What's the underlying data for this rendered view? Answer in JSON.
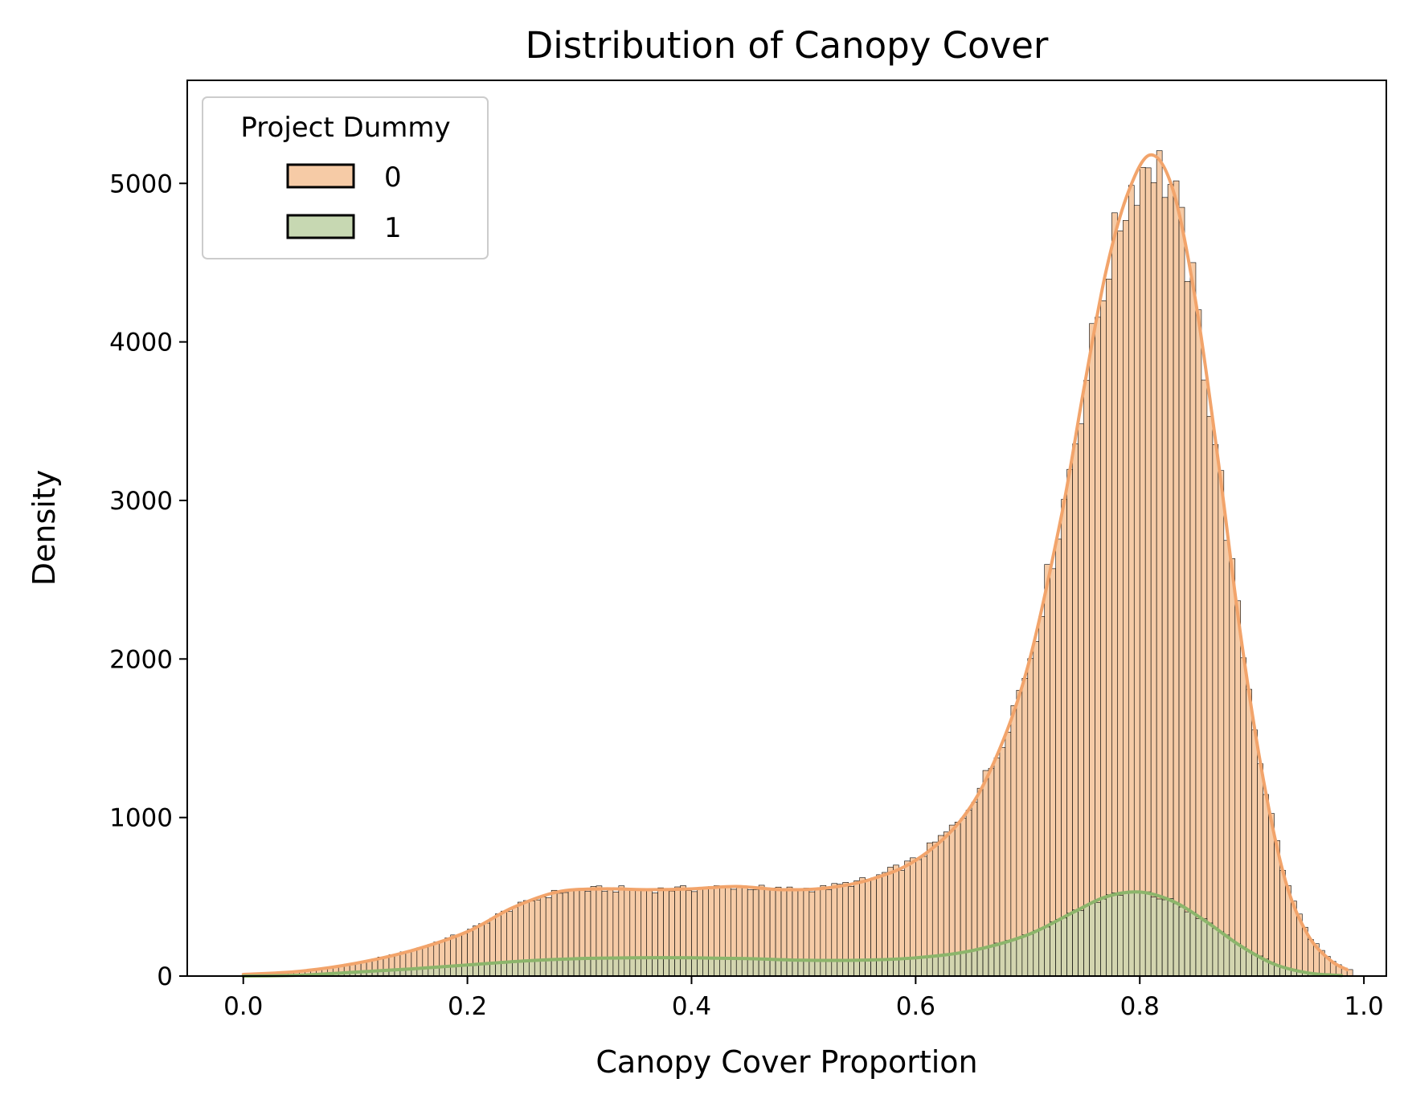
{
  "chart_data": {
    "type": "histogram",
    "title": "Distribution of Canopy Cover",
    "xlabel": "Canopy Cover Proportion",
    "ylabel": "Density",
    "xlim": [
      -0.05,
      1.02
    ],
    "ylim": [
      0,
      5650
    ],
    "xticks": [
      0.0,
      0.2,
      0.4,
      0.6,
      0.8,
      1.0
    ],
    "xtick_labels": [
      "0.0",
      "0.2",
      "0.4",
      "0.6",
      "0.8",
      "1.0"
    ],
    "yticks": [
      0,
      1000,
      2000,
      3000,
      4000,
      5000
    ],
    "ytick_labels": [
      "0",
      "1000",
      "2000",
      "3000",
      "4000",
      "5000"
    ],
    "grid": false,
    "legend": {
      "title": "Project Dummy",
      "placement": "top-left",
      "entries": [
        "0",
        "1"
      ]
    },
    "bin_width": 0.005,
    "series": [
      {
        "name": "0",
        "fill_color": "#f6cba6",
        "line_color": "#f2a46b",
        "kde_points": [
          [
            0.0,
            10
          ],
          [
            0.05,
            30
          ],
          [
            0.1,
            80
          ],
          [
            0.15,
            160
          ],
          [
            0.2,
            280
          ],
          [
            0.24,
            430
          ],
          [
            0.28,
            530
          ],
          [
            0.32,
            550
          ],
          [
            0.36,
            545
          ],
          [
            0.4,
            550
          ],
          [
            0.44,
            565
          ],
          [
            0.48,
            545
          ],
          [
            0.52,
            555
          ],
          [
            0.56,
            610
          ],
          [
            0.6,
            730
          ],
          [
            0.64,
            980
          ],
          [
            0.67,
            1350
          ],
          [
            0.7,
            1950
          ],
          [
            0.73,
            2900
          ],
          [
            0.75,
            3700
          ],
          [
            0.77,
            4450
          ],
          [
            0.79,
            4950
          ],
          [
            0.81,
            5180
          ],
          [
            0.83,
            4950
          ],
          [
            0.85,
            4250
          ],
          [
            0.87,
            3250
          ],
          [
            0.89,
            2150
          ],
          [
            0.91,
            1250
          ],
          [
            0.93,
            600
          ],
          [
            0.95,
            260
          ],
          [
            0.97,
            100
          ],
          [
            0.985,
            40
          ]
        ]
      },
      {
        "name": "1",
        "fill_color": "#c7d8b2",
        "line_color": "#8cb56b",
        "kde_points": [
          [
            0.0,
            0
          ],
          [
            0.05,
            5
          ],
          [
            0.1,
            25
          ],
          [
            0.15,
            45
          ],
          [
            0.2,
            70
          ],
          [
            0.25,
            95
          ],
          [
            0.3,
            110
          ],
          [
            0.35,
            115
          ],
          [
            0.4,
            115
          ],
          [
            0.45,
            110
          ],
          [
            0.5,
            100
          ],
          [
            0.55,
            100
          ],
          [
            0.6,
            115
          ],
          [
            0.65,
            160
          ],
          [
            0.7,
            260
          ],
          [
            0.74,
            400
          ],
          [
            0.77,
            500
          ],
          [
            0.8,
            530
          ],
          [
            0.83,
            470
          ],
          [
            0.86,
            340
          ],
          [
            0.89,
            190
          ],
          [
            0.92,
            75
          ],
          [
            0.95,
            20
          ],
          [
            0.98,
            3
          ]
        ]
      }
    ]
  }
}
